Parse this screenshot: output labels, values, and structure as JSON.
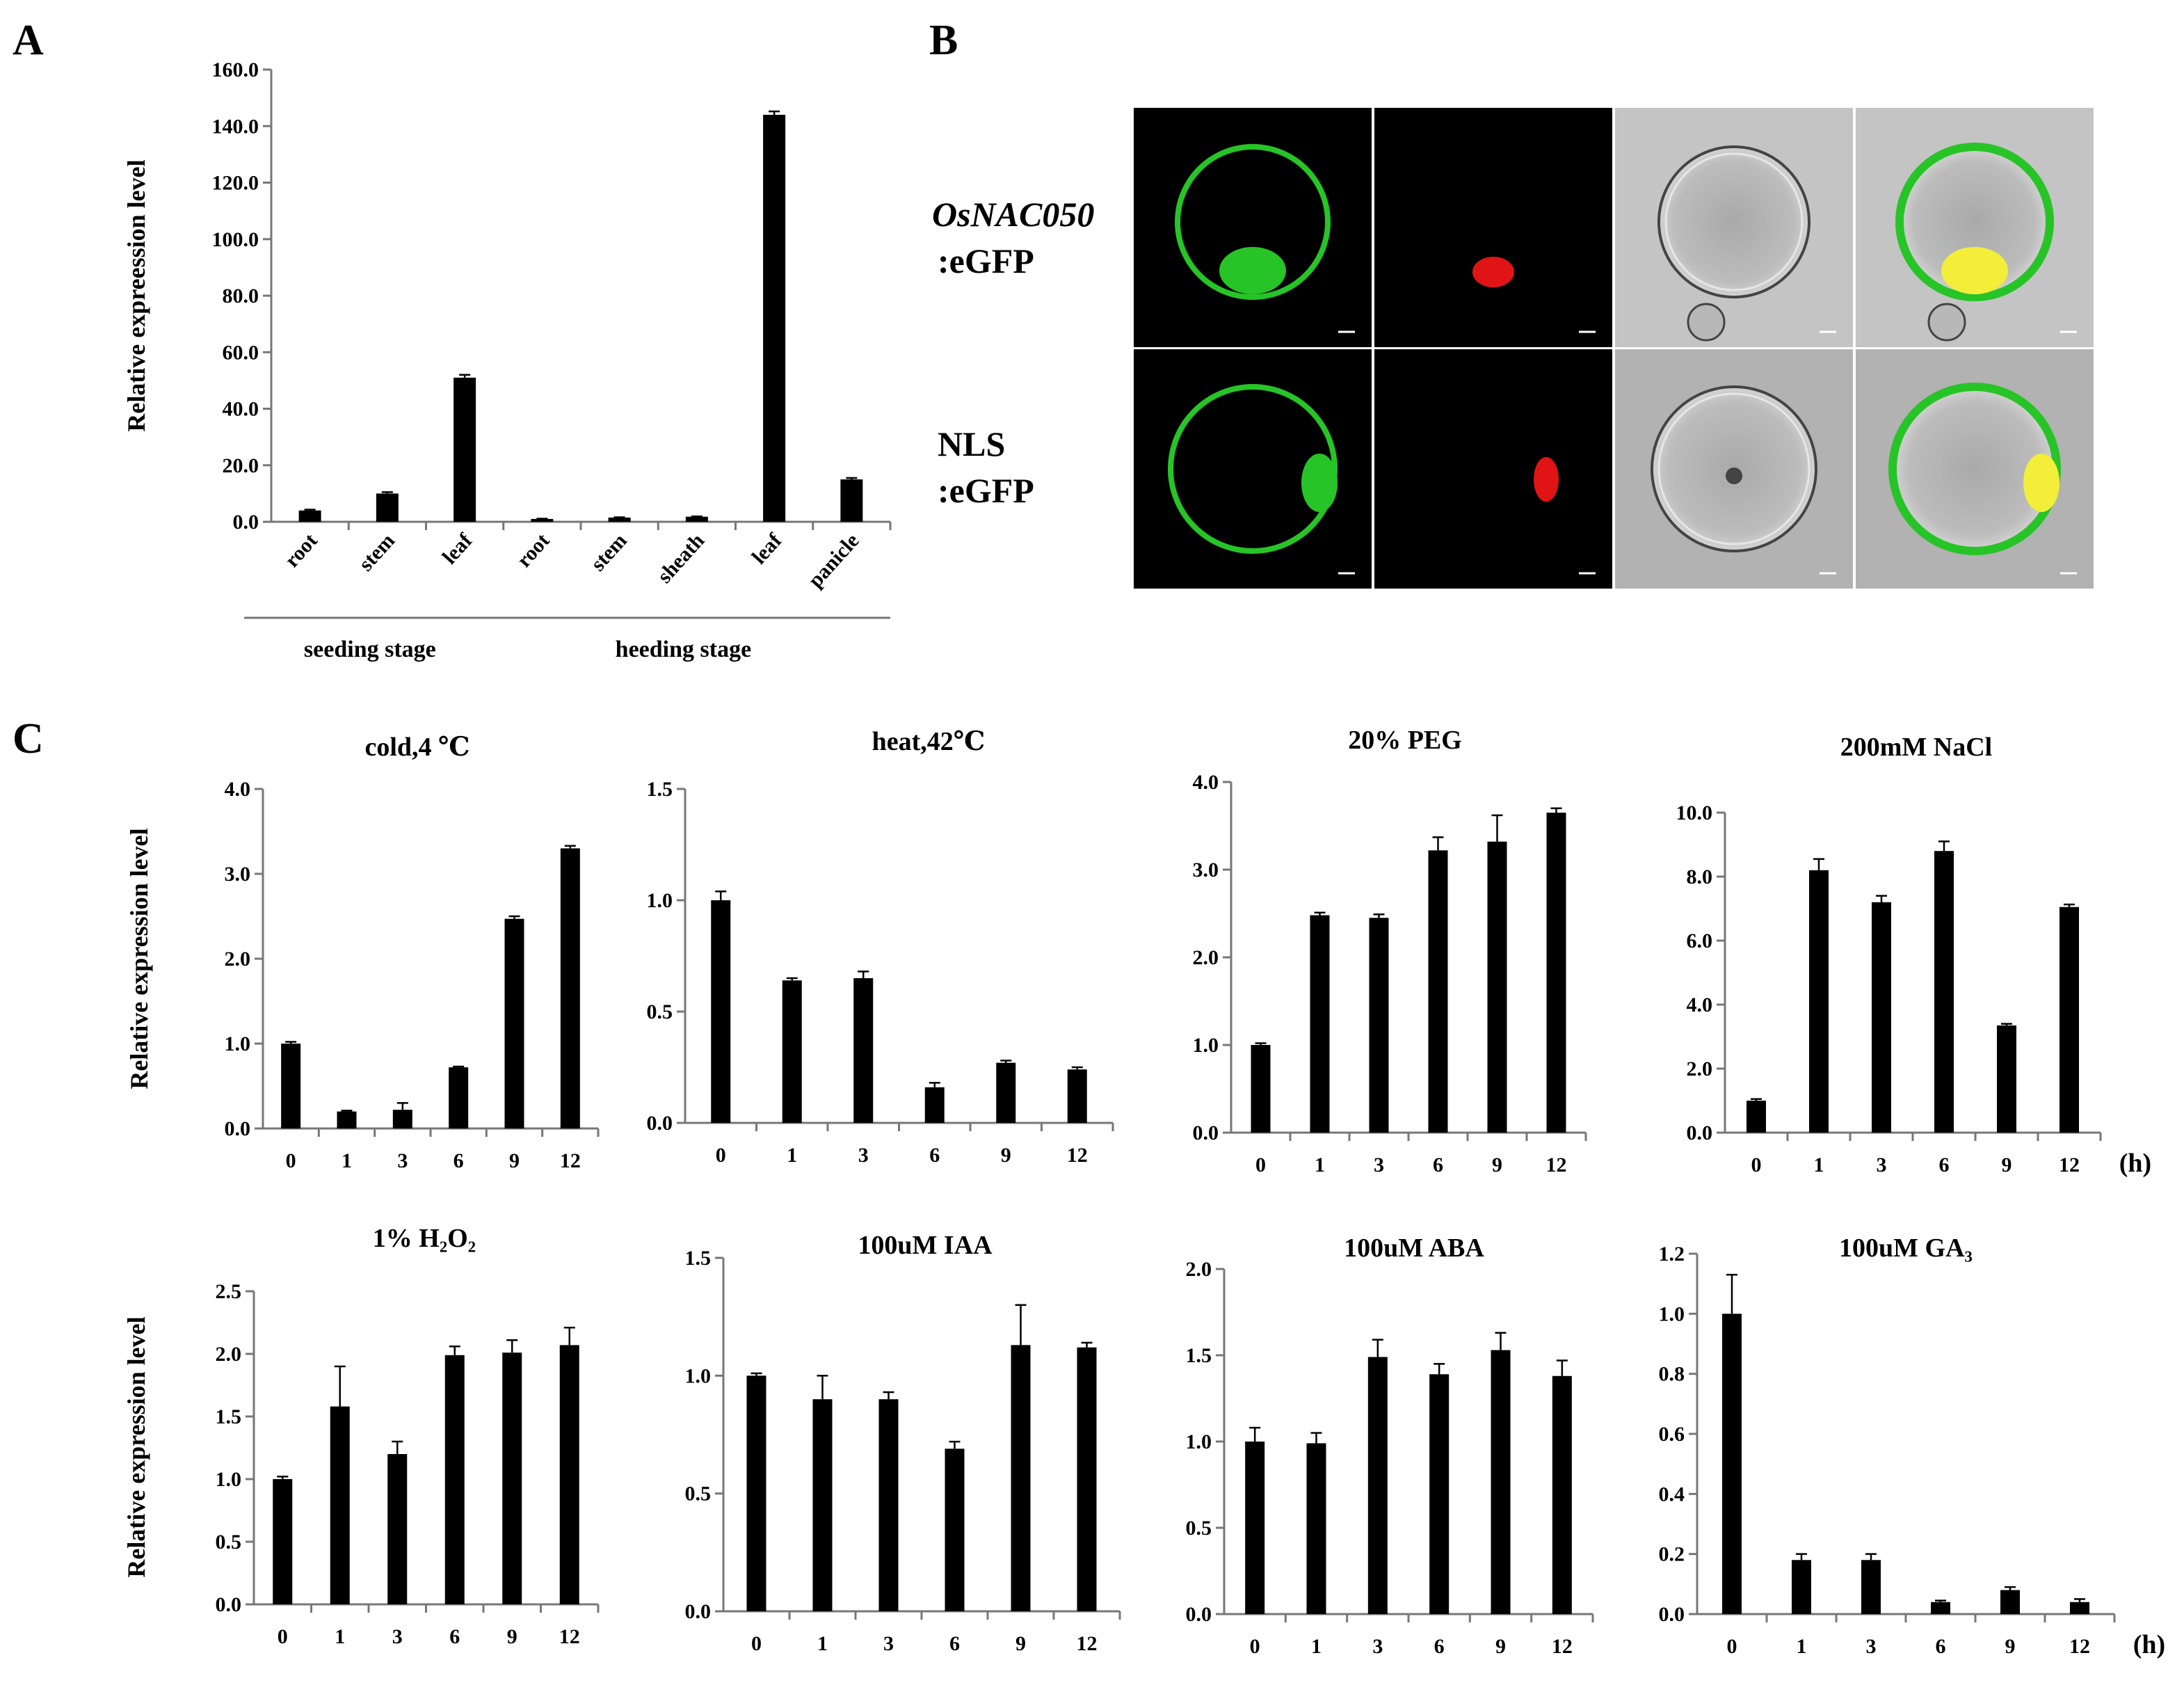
{
  "panels": {
    "A": "A",
    "B": "B",
    "C": "C"
  },
  "panel_b": {
    "rows": [
      {
        "line1": "OsNAC050",
        "line2": ":eGFP"
      },
      {
        "line1": "NLS",
        "line2": ":eGFP"
      }
    ],
    "colors": {
      "gfp": "#27c427",
      "rfp": "#e01414",
      "merge": "#f2ee3a",
      "bright_field": "#bdbdbd",
      "dark": "#000000"
    }
  },
  "chart_data": [
    {
      "id": "A",
      "type": "bar",
      "title": "",
      "ylabel": "Relative  expreession level",
      "xlabel": "",
      "categories": [
        "root",
        "stem",
        "leaf",
        "root",
        "stem",
        "sheath",
        "leaf",
        "panicle"
      ],
      "values": [
        4.0,
        10.0,
        51.0,
        1.0,
        1.5,
        1.8,
        144.0,
        15.0
      ],
      "errors": [
        0.3,
        0.5,
        1.0,
        0.1,
        0.1,
        0.1,
        1.2,
        0.5
      ],
      "yticks": [
        "0.0",
        "20.0",
        "40.0",
        "60.0",
        "80.0",
        "100.0",
        "120.0",
        "140.0",
        "160.0"
      ],
      "ylim": [
        0,
        160
      ],
      "groups": [
        {
          "label": "seeding stage",
          "from": 0,
          "to": 2
        },
        {
          "label": "heeding stage",
          "from": 3,
          "to": 7
        }
      ]
    },
    {
      "id": "C1",
      "type": "bar",
      "title": "cold,4 ℃",
      "ylabel": "Relative  expression  level",
      "xlabel": "",
      "categories": [
        "0",
        "1",
        "3",
        "6",
        "9",
        "12"
      ],
      "values": [
        1.0,
        0.2,
        0.22,
        0.72,
        2.47,
        3.3
      ],
      "errors": [
        0.02,
        0.01,
        0.08,
        0.01,
        0.03,
        0.03
      ],
      "yticks": [
        "0.0",
        "1.0",
        "2.0",
        "3.0",
        "4.0"
      ],
      "ylim": [
        0,
        4
      ]
    },
    {
      "id": "C2",
      "type": "bar",
      "title": "heat,42℃",
      "ylabel": "",
      "xlabel": "",
      "categories": [
        "0",
        "1",
        "3",
        "6",
        "9",
        "12"
      ],
      "values": [
        1.0,
        0.64,
        0.65,
        0.16,
        0.27,
        0.24
      ],
      "errors": [
        0.04,
        0.01,
        0.03,
        0.02,
        0.01,
        0.01
      ],
      "yticks": [
        "0.0",
        "0.5",
        "1.0",
        "1.5"
      ],
      "ylim": [
        0,
        1.5
      ]
    },
    {
      "id": "C3",
      "type": "bar",
      "title": "20% PEG",
      "ylabel": "",
      "xlabel": "",
      "categories": [
        "0",
        "1",
        "3",
        "6",
        "9",
        "12"
      ],
      "values": [
        1.0,
        2.48,
        2.45,
        3.22,
        3.32,
        3.65
      ],
      "errors": [
        0.02,
        0.03,
        0.04,
        0.15,
        0.3,
        0.05
      ],
      "yticks": [
        "0.0",
        "1.0",
        "2.0",
        "3.0",
        "4.0"
      ],
      "ylim": [
        0,
        4
      ]
    },
    {
      "id": "C4",
      "type": "bar",
      "title": "200mM NaCl",
      "ylabel": "",
      "xlabel": "(h)",
      "categories": [
        "0",
        "1",
        "3",
        "6",
        "9",
        "12"
      ],
      "values": [
        1.0,
        8.2,
        7.2,
        8.8,
        3.35,
        7.05
      ],
      "errors": [
        0.05,
        0.35,
        0.2,
        0.3,
        0.05,
        0.08
      ],
      "yticks": [
        "0.0",
        "2.0",
        "4.0",
        "6.0",
        "8.0",
        "10.0"
      ],
      "ylim": [
        0,
        10
      ]
    },
    {
      "id": "C5",
      "type": "bar",
      "title": "1% H₂O₂",
      "ylabel": "Relative  expression  level",
      "xlabel": "",
      "categories": [
        "0",
        "1",
        "3",
        "6",
        "9",
        "12"
      ],
      "values": [
        1.0,
        1.58,
        1.2,
        1.99,
        2.01,
        2.07
      ],
      "errors": [
        0.02,
        0.32,
        0.1,
        0.07,
        0.1,
        0.14
      ],
      "yticks": [
        "0.0",
        "0.5",
        "1.0",
        "1.5",
        "2.0",
        "2.5"
      ],
      "ylim": [
        0,
        2.5
      ]
    },
    {
      "id": "C6",
      "type": "bar",
      "title": "100uM IAA",
      "ylabel": "",
      "xlabel": "",
      "categories": [
        "0",
        "1",
        "3",
        "6",
        "9",
        "12"
      ],
      "values": [
        1.0,
        0.9,
        0.9,
        0.69,
        1.13,
        1.12
      ],
      "errors": [
        0.01,
        0.1,
        0.03,
        0.03,
        0.17,
        0.02
      ],
      "yticks": [
        "0.0",
        "0.5",
        "1.0",
        "1.5"
      ],
      "ylim": [
        0,
        1.5
      ]
    },
    {
      "id": "C7",
      "type": "bar",
      "title": "100uM ABA",
      "ylabel": "",
      "xlabel": "",
      "categories": [
        "0",
        "1",
        "3",
        "6",
        "9",
        "12"
      ],
      "values": [
        1.0,
        0.99,
        1.49,
        1.39,
        1.53,
        1.38
      ],
      "errors": [
        0.08,
        0.06,
        0.1,
        0.06,
        0.1,
        0.09
      ],
      "yticks": [
        "0.0",
        "0.5",
        "1.0",
        "1.5",
        "2.0"
      ],
      "ylim": [
        0,
        2
      ]
    },
    {
      "id": "C8",
      "type": "bar",
      "title": "100uM GA₃",
      "ylabel": "",
      "xlabel": "(h)",
      "categories": [
        "0",
        "1",
        "3",
        "6",
        "9",
        "12"
      ],
      "values": [
        1.0,
        0.18,
        0.18,
        0.04,
        0.08,
        0.04
      ],
      "errors": [
        0.13,
        0.02,
        0.02,
        0.005,
        0.01,
        0.01
      ],
      "yticks": [
        "0.0",
        "0.2",
        "0.4",
        "0.6",
        "0.8",
        "1.0",
        "1.2"
      ],
      "ylim": [
        0,
        1.2
      ]
    }
  ]
}
